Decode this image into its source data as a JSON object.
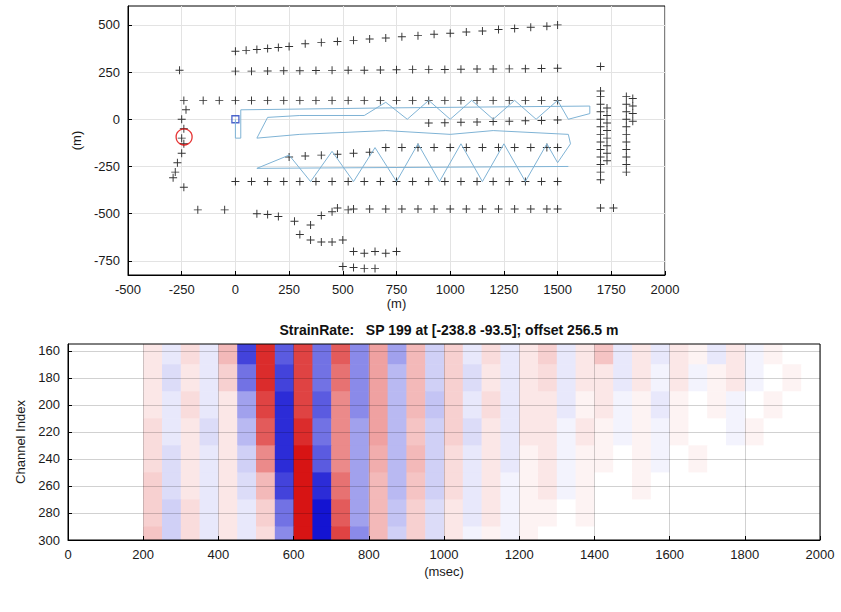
{
  "chart_data": [
    {
      "type": "scatter",
      "xlabel": "(m)",
      "ylabel": "(m)",
      "xlim": [
        -500,
        2000
      ],
      "xticks": [
        -500,
        -250,
        0,
        250,
        500,
        750,
        1000,
        1250,
        1500,
        1750,
        2000
      ],
      "ylim": [
        -825,
        600
      ],
      "yticks": [
        -750,
        -500,
        -250,
        0,
        250,
        500
      ],
      "grid": true,
      "series": [
        {
          "type": "line",
          "color": "#7fb3d5",
          "x": [
            0,
            0,
            25,
            25,
            700,
            1650,
            1650,
            1550,
            1500,
            1400,
            1300,
            1200,
            1100,
            1000,
            900,
            800,
            700,
            600,
            300,
            150,
            100,
            300,
            700,
            1000,
            1200,
            1550,
            1560,
            1500,
            1450,
            1350,
            1250,
            1150,
            1050,
            950,
            850,
            750,
            650,
            550,
            450,
            350,
            250,
            100,
            1550
          ],
          "values": [
            0,
            -100,
            -100,
            50,
            60,
            70,
            30,
            0,
            100,
            0,
            100,
            0,
            100,
            0,
            100,
            0,
            90,
            20,
            20,
            10,
            -100,
            -80,
            -60,
            -80,
            -60,
            -80,
            -130,
            -230,
            -130,
            -330,
            -130,
            -330,
            -130,
            -330,
            -130,
            -330,
            -150,
            -330,
            -170,
            -330,
            -190,
            -260,
            -250
          ]
        },
        {
          "type": "scatter",
          "marker": "plus",
          "color": "#000000",
          "x": [
            0,
            50,
            100,
            150,
            200,
            250
          ],
          "values": [
            360,
            365,
            370,
            375,
            380,
            385
          ]
        },
        {
          "type": "scatter",
          "marker": "plus",
          "color": "#000000",
          "x": [
            325,
            400,
            475,
            550,
            625,
            700,
            775,
            850,
            925,
            1000,
            1075,
            1150,
            1225,
            1300,
            1375,
            1450,
            1500
          ],
          "values": [
            400,
            406,
            412,
            418,
            425,
            431,
            437,
            443,
            450,
            456,
            462,
            468,
            475,
            481,
            487,
            493,
            500
          ]
        },
        {
          "type": "scatter",
          "marker": "plus",
          "color": "#000000",
          "x": [
            0,
            75,
            150,
            225,
            300,
            375,
            450,
            525,
            600,
            675,
            750,
            825,
            900,
            975,
            1050,
            1125,
            1200,
            1275,
            1350,
            1425,
            1500,
            1700
          ],
          "values": [
            255,
            255,
            256,
            257,
            257,
            258,
            259,
            260,
            260,
            261,
            262,
            263,
            263,
            264,
            265,
            266,
            266,
            267,
            268,
            269,
            270,
            280
          ]
        },
        {
          "type": "scatter",
          "marker": "plus",
          "color": "#000000",
          "x": [
            -150,
            -75,
            0,
            75,
            150,
            225,
            300,
            375,
            450,
            525,
            600,
            675,
            750,
            825,
            900,
            975,
            1050,
            1125,
            1200,
            1275,
            1350,
            1425,
            1500
          ],
          "values": [
            100,
            100,
            100,
            100,
            100,
            100,
            100,
            100,
            100,
            100,
            100,
            100,
            100,
            100,
            100,
            100,
            100,
            100,
            100,
            100,
            100,
            100,
            100
          ]
        },
        {
          "type": "scatter",
          "marker": "plus",
          "color": "#000000",
          "x": [
            900,
            975,
            1050,
            1125,
            1200,
            1275,
            1350,
            1425,
            1500
          ],
          "values": [
            -20,
            -18,
            -16,
            -14,
            -12,
            -10,
            -8,
            -6,
            -4
          ]
        },
        {
          "type": "scatter",
          "marker": "plus",
          "color": "#000000",
          "x": [
            700,
            775,
            850,
            925,
            1000,
            1075,
            1150,
            1225,
            1300,
            1375,
            1450,
            1500
          ],
          "values": [
            -150,
            -150,
            -150,
            -150,
            -150,
            -150,
            -150,
            -150,
            -150,
            -150,
            -150,
            -150
          ]
        },
        {
          "type": "scatter",
          "marker": "plus",
          "color": "#000000",
          "x": [
            250,
            325,
            400,
            475,
            550,
            625
          ],
          "values": [
            -200,
            -195,
            -190,
            -185,
            -180,
            -175
          ]
        },
        {
          "type": "scatter",
          "marker": "plus",
          "color": "#000000",
          "x": [
            0,
            75,
            150,
            225,
            300,
            375,
            450,
            525,
            600,
            675,
            750,
            825,
            900,
            975,
            1050,
            1125,
            1200,
            1275,
            1350,
            1425,
            1500
          ],
          "values": [
            -330,
            -330,
            -330,
            -330,
            -330,
            -330,
            -330,
            -330,
            -330,
            -330,
            -330,
            -330,
            -330,
            -330,
            -330,
            -330,
            -330,
            -330,
            -330,
            -330,
            -330
          ]
        },
        {
          "type": "scatter",
          "marker": "plus",
          "color": "#000000",
          "x": [
            -175,
            -50,
            100,
            150,
            200,
            275,
            350,
            400,
            450,
            475,
            525
          ],
          "values": [
            -480,
            -480,
            -500,
            -505,
            -515,
            -540,
            -560,
            -510,
            -490,
            -470,
            -480
          ]
        },
        {
          "type": "scatter",
          "marker": "plus",
          "color": "#000000",
          "x": [
            550,
            625,
            700,
            775,
            850,
            925,
            1000,
            1075,
            1150,
            1225,
            1300,
            1375,
            1450,
            1500
          ],
          "values": [
            -475,
            -475,
            -475,
            -475,
            -475,
            -475,
            -475,
            -475,
            -475,
            -475,
            -475,
            -475,
            -475,
            -475
          ]
        },
        {
          "type": "scatter",
          "marker": "plus",
          "color": "#000000",
          "x": [
            300,
            350,
            400,
            450,
            500,
            550,
            600,
            650,
            700,
            750,
            500,
            550,
            600,
            650
          ],
          "values": [
            -610,
            -640,
            -650,
            -650,
            -640,
            -700,
            -710,
            -700,
            -710,
            -700,
            -780,
            -785,
            -790,
            -790
          ]
        },
        {
          "type": "scatter",
          "marker": "plus",
          "color": "#000000",
          "x": [
            -260,
            -240,
            -230,
            -250,
            -240,
            -250,
            -240,
            -250,
            -270,
            -280,
            -290,
            -240
          ],
          "values": [
            260,
            100,
            50,
            0,
            -50,
            -100,
            -130,
            -180,
            -230,
            -280,
            -310,
            -360
          ]
        },
        {
          "type": "scatter",
          "marker": "plus",
          "color": "#000000",
          "x": [
            1700,
            1700,
            1700,
            1700,
            1700,
            1700,
            1700,
            1700,
            1700,
            1700,
            1700,
            1700,
            1700,
            1730,
            1730,
            1730,
            1730,
            1730,
            1730,
            1730,
            1730
          ],
          "values": [
            150,
            120,
            80,
            40,
            0,
            -40,
            -80,
            -120,
            -160,
            -200,
            -240,
            -280,
            -320,
            60,
            20,
            -20,
            -60,
            -100,
            -140,
            -180,
            -220
          ]
        },
        {
          "type": "scatter",
          "marker": "plus",
          "color": "#000000",
          "x": [
            1820,
            1820,
            1820,
            1820,
            1820,
            1820,
            1820,
            1820,
            1820,
            1820,
            1820,
            1850,
            1850,
            1850,
            1850,
            1700,
            1760
          ],
          "values": [
            120,
            80,
            40,
            0,
            -40,
            -80,
            -120,
            -160,
            -200,
            -240,
            -280,
            110,
            70,
            30,
            -10,
            -470,
            -470
          ]
        },
        {
          "type": "scatter",
          "marker": "circle",
          "color": "#e00000",
          "x": [
            -238.8
          ],
          "values": [
            -93.5
          ]
        },
        {
          "type": "scatter",
          "marker": "square",
          "color": "#1f3fbf",
          "x": [
            0
          ],
          "values": [
            0
          ]
        }
      ]
    },
    {
      "type": "heatmap",
      "title": "StrainRate:   SP 199 at [-238.8 -93.5]; offset 256.5 m",
      "xlabel": "(msec)",
      "ylabel": "Channel Index",
      "xlim": [
        0,
        2000
      ],
      "xticks": [
        0,
        200,
        400,
        600,
        800,
        1000,
        1200,
        1400,
        1600,
        1800,
        2000
      ],
      "ylim": [
        155,
        300
      ],
      "yticks": [
        160,
        180,
        200,
        220,
        240,
        260,
        280,
        300
      ],
      "grid": true,
      "color_range": [
        -1,
        1
      ],
      "x": [
        25,
        75,
        125,
        175,
        225,
        275,
        325,
        375,
        425,
        475,
        525,
        575,
        625,
        675,
        725,
        775,
        825,
        875,
        925,
        975,
        1025,
        1075,
        1125,
        1175,
        1225,
        1275,
        1325,
        1375,
        1425,
        1475,
        1525,
        1575,
        1625,
        1675,
        1725,
        1775,
        1825,
        1875,
        1925,
        1975
      ],
      "y": [
        160,
        180,
        200,
        220,
        240,
        260,
        280,
        300
      ],
      "cells": [
        [
          0,
          0,
          0,
          0,
          0.1,
          -0.1,
          0.15,
          -0.1,
          0.3,
          -0.8,
          0.9,
          -0.7,
          0.8,
          -0.6,
          0.7,
          -0.5,
          0.4,
          -0.4,
          0.3,
          -0.2,
          0.2,
          -0.1,
          0.15,
          -0.1,
          0.1,
          0.2,
          -0.1,
          0.1,
          0.25,
          -0.1,
          0.1,
          -0.1,
          0.1,
          0.05,
          -0.1,
          0.1,
          -0.05,
          0.05,
          0,
          0
        ],
        [
          0,
          0,
          0,
          0,
          0.1,
          -0.15,
          0.1,
          -0.1,
          0.2,
          -0.6,
          0.9,
          -0.8,
          0.8,
          -0.6,
          0.6,
          -0.5,
          0.4,
          -0.3,
          0.3,
          -0.2,
          0.2,
          -0.15,
          0.1,
          -0.1,
          0.1,
          0.15,
          -0.1,
          0.1,
          0.1,
          -0.1,
          0.1,
          -0.05,
          0.1,
          -0.05,
          0.05,
          0.1,
          -0.05,
          0,
          0.05,
          0
        ],
        [
          0,
          0,
          0,
          0,
          0.1,
          -0.1,
          0.15,
          -0.1,
          0.1,
          -0.4,
          0.8,
          -0.9,
          0.8,
          -0.7,
          0.5,
          -0.5,
          0.4,
          -0.3,
          0.3,
          -0.25,
          0.2,
          -0.1,
          0.15,
          -0.1,
          0.1,
          0.1,
          -0.1,
          0.05,
          0.1,
          -0.05,
          0.05,
          -0.1,
          0.05,
          0,
          0.05,
          -0.05,
          0,
          0.05,
          0,
          0
        ],
        [
          0,
          0,
          0,
          0,
          0.15,
          -0.1,
          0.1,
          -0.15,
          0.1,
          -0.3,
          0.7,
          -0.9,
          0.9,
          -0.6,
          0.5,
          -0.4,
          0.4,
          -0.3,
          0.25,
          -0.2,
          0.2,
          -0.15,
          0.1,
          -0.1,
          0.1,
          0.1,
          -0.05,
          0.1,
          0.05,
          -0.05,
          0.05,
          -0.05,
          0.05,
          0,
          0,
          -0.05,
          0.05,
          0,
          0,
          0
        ],
        [
          0,
          0,
          0,
          0,
          0.15,
          -0.15,
          0.1,
          -0.1,
          0.1,
          -0.2,
          0.5,
          -0.9,
          1,
          -0.7,
          0.5,
          -0.4,
          0.35,
          -0.3,
          0.3,
          -0.2,
          0.15,
          -0.1,
          0.1,
          -0.1,
          0.05,
          0.1,
          -0.05,
          0.05,
          0.05,
          0,
          0.05,
          -0.05,
          0,
          0.05,
          0,
          0,
          0,
          0,
          0,
          0
        ],
        [
          0,
          0,
          0,
          0,
          0.2,
          -0.15,
          0.1,
          -0.1,
          0.1,
          -0.15,
          0.3,
          -0.8,
          1,
          -0.9,
          0.6,
          -0.4,
          0.3,
          -0.3,
          0.25,
          -0.2,
          0.15,
          -0.1,
          0.1,
          -0.05,
          0.05,
          0.1,
          -0.05,
          0.05,
          0,
          0,
          0.05,
          0,
          0,
          0,
          0,
          0,
          0,
          0,
          0,
          0
        ],
        [
          0,
          0,
          0,
          0,
          0.2,
          -0.2,
          0.15,
          -0.1,
          0.1,
          -0.1,
          0.2,
          -0.6,
          1,
          -1,
          0.7,
          -0.4,
          0.3,
          -0.25,
          0.2,
          -0.15,
          0.1,
          -0.1,
          0.1,
          -0.05,
          0.05,
          0.05,
          0,
          0.05,
          0,
          0,
          0,
          0,
          0,
          0,
          0,
          0,
          0,
          0,
          0,
          0
        ],
        [
          0,
          0,
          0,
          0,
          0.25,
          -0.2,
          0.15,
          -0.1,
          0.1,
          -0.1,
          0.15,
          -0.5,
          1,
          -1,
          0.8,
          -0.5,
          0.3,
          -0.2,
          0.2,
          -0.15,
          0.1,
          -0.05,
          0.05,
          -0.05,
          0.05,
          0,
          0,
          0,
          0,
          0,
          0,
          0,
          0,
          0,
          0,
          0,
          0,
          0,
          0,
          0
        ]
      ]
    }
  ]
}
